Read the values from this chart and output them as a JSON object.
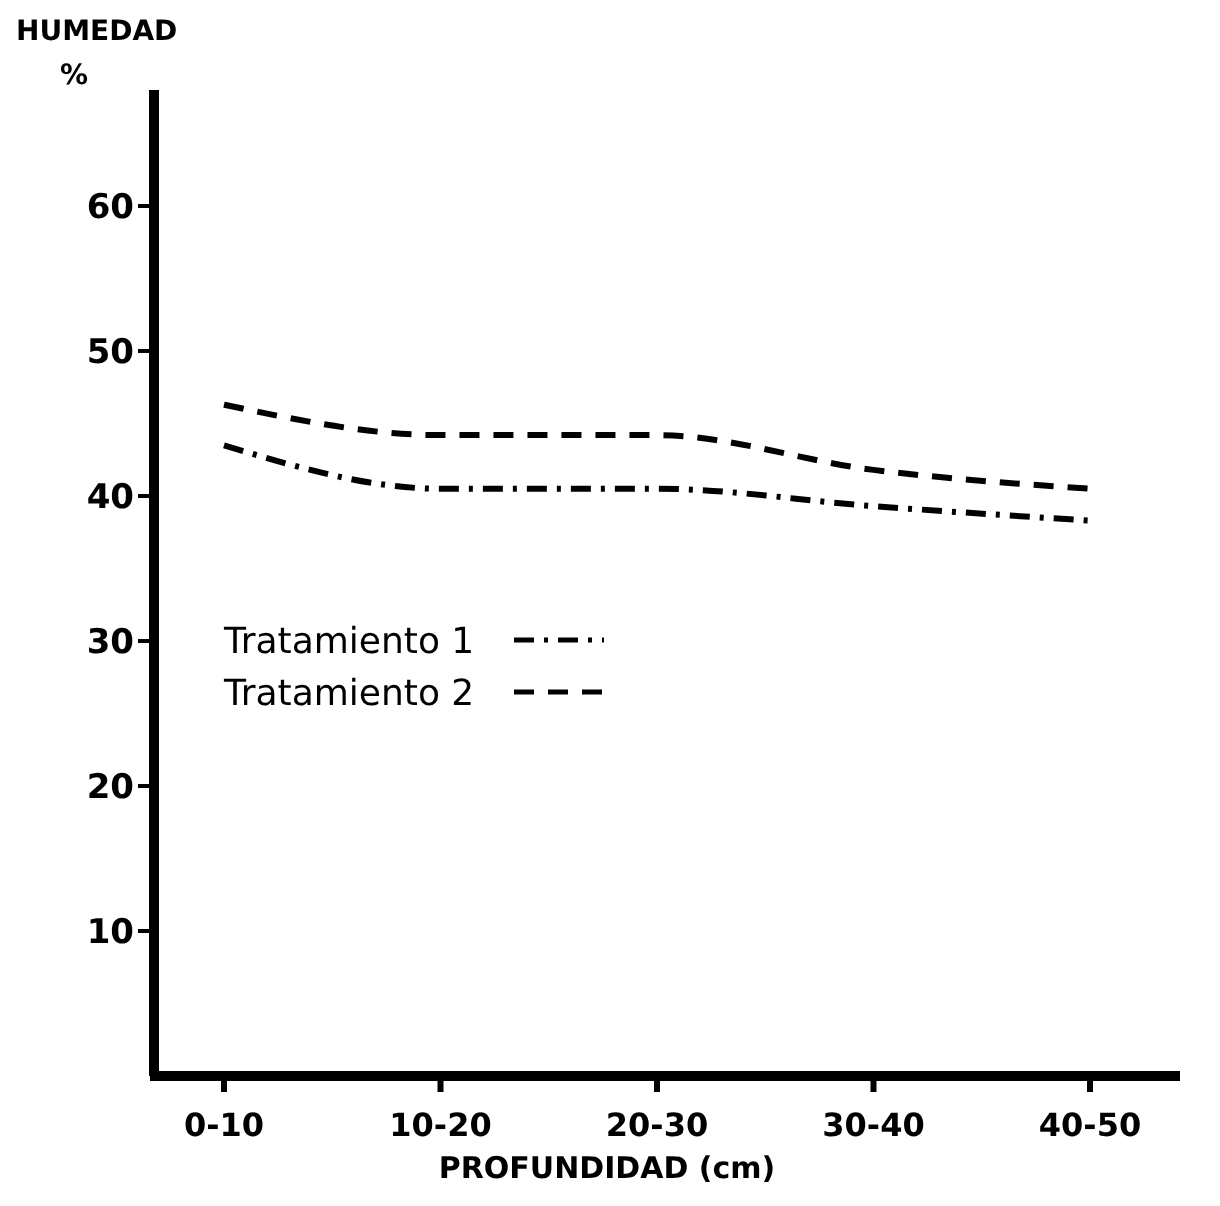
{
  "chart_data": {
    "type": "line",
    "xlabel": "PROFUNDIDAD (cm)",
    "ylabel": "HUMEDAD\n%",
    "categories": [
      "0-10",
      "10-20",
      "20-30",
      "30-40",
      "40-50"
    ],
    "series": [
      {
        "name": "Tratamiento 1",
        "color": "#000000",
        "line_style": "dashdot",
        "values": [
          43.5,
          40.5,
          40.5,
          39.3,
          38.3
        ]
      },
      {
        "name": "Tratamiento 2",
        "color": "#000000",
        "line_style": "dashed",
        "values": [
          46.3,
          44.2,
          44.2,
          41.8,
          40.5
        ]
      }
    ],
    "ylim": [
      0,
      68
    ],
    "yticks": [
      10,
      20,
      30,
      40,
      50,
      60
    ],
    "grid": false,
    "legend": "left",
    "marker": "none"
  }
}
